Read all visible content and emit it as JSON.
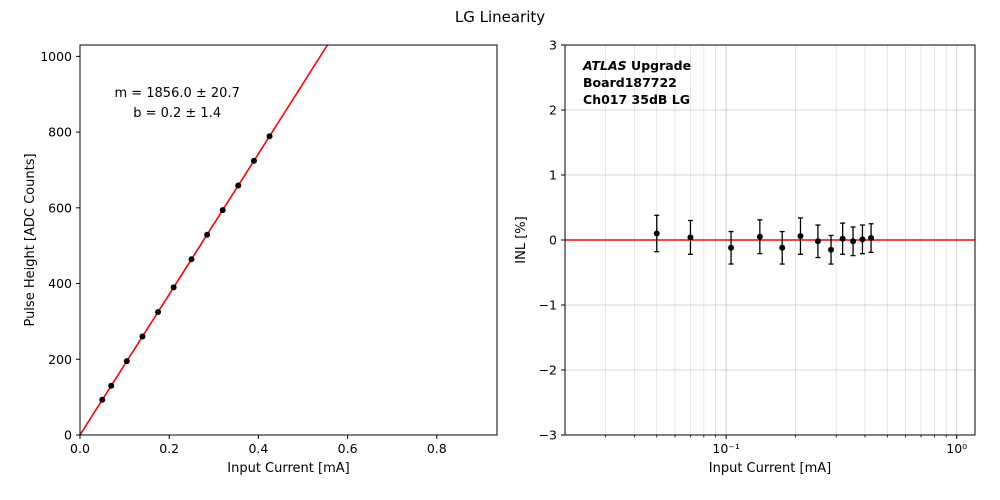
{
  "figure": {
    "title": "LG Linearity",
    "background_color": "#ffffff"
  },
  "chart_data": [
    {
      "id": "linearity-fit-plot",
      "type": "scatter",
      "xlabel": "Input Current [mA]",
      "ylabel": "Pulse Height [ADC Counts]",
      "xscale": "linear",
      "xlim": [
        0.0,
        0.935
      ],
      "ylim": [
        0,
        1030
      ],
      "grid": false,
      "legend": "none",
      "xticks": [
        0.0,
        0.2,
        0.4,
        0.6,
        0.8
      ],
      "xtick_labels": [
        "0.0",
        "0.2",
        "0.4",
        "0.6",
        "0.8"
      ],
      "yticks": [
        0,
        200,
        400,
        600,
        800,
        1000
      ],
      "ytick_labels": [
        "0",
        "200",
        "400",
        "600",
        "800",
        "1000"
      ],
      "points": {
        "marker": "circle",
        "color": "#000000",
        "x": [
          0.05,
          0.07,
          0.105,
          0.14,
          0.175,
          0.21,
          0.25,
          0.285,
          0.32,
          0.355,
          0.39,
          0.425
        ],
        "y": [
          93,
          130,
          195,
          260,
          325,
          390,
          464,
          529,
          594,
          659,
          724,
          789
        ]
      },
      "fit_line": {
        "m": 1856.0,
        "b": 0.2,
        "color": "#ff0000"
      },
      "annotation": {
        "x": 0.233,
        "y": 0.133,
        "anchor": "middle",
        "size": 13,
        "line_height": 20,
        "lines": [
          [
            {
              "t": "m = 1856.0 ± 20.7"
            }
          ],
          [
            {
              "t": "b = 0.2 ± 1.4"
            }
          ]
        ]
      }
    },
    {
      "id": "inl-plot",
      "type": "scatter",
      "xlabel": "Input Current [mA]",
      "ylabel": "INL [%]",
      "xscale": "log",
      "xlim": [
        0.02,
        1.2
      ],
      "ylim": [
        -3,
        3
      ],
      "grid": true,
      "legend": "none",
      "xticks": [
        0.1,
        1.0
      ],
      "xtick_labels": [
        "10⁻¹",
        "10⁰"
      ],
      "xticks_minor": [
        0.03,
        0.04,
        0.05,
        0.06,
        0.07,
        0.08,
        0.09,
        0.2,
        0.3,
        0.4,
        0.5,
        0.6,
        0.7,
        0.8,
        0.9
      ],
      "yticks": [
        -3,
        -2,
        -1,
        0,
        1,
        2,
        3
      ],
      "ytick_labels": [
        "−3",
        "−2",
        "−1",
        "0",
        "1",
        "2",
        "3"
      ],
      "reference_line": {
        "y": 0,
        "color": "#ff0000"
      },
      "points": {
        "marker": "circle",
        "color": "#000000",
        "x": [
          0.05,
          0.07,
          0.105,
          0.14,
          0.175,
          0.21,
          0.25,
          0.285,
          0.32,
          0.355,
          0.39,
          0.425
        ],
        "y": [
          0.1,
          0.04,
          -0.12,
          0.05,
          -0.12,
          0.06,
          -0.02,
          -0.15,
          0.02,
          -0.02,
          0.01,
          0.03
        ],
        "yerr": [
          0.28,
          0.26,
          0.25,
          0.26,
          0.25,
          0.28,
          0.25,
          0.22,
          0.24,
          0.22,
          0.22,
          0.22
        ]
      },
      "annotation": {
        "x": 0.044,
        "y": 0.064,
        "anchor": "start",
        "size": 12.5,
        "line_height": 17,
        "lines": [
          [
            {
              "t": "ATLAS",
              "b": true,
              "i": true
            },
            {
              "t": " Upgrade",
              "b": true
            }
          ],
          [
            {
              "t": " Board187722",
              "b": true
            }
          ],
          [
            {
              "t": " Ch017 35dB LG",
              "b": true
            }
          ]
        ]
      }
    }
  ]
}
